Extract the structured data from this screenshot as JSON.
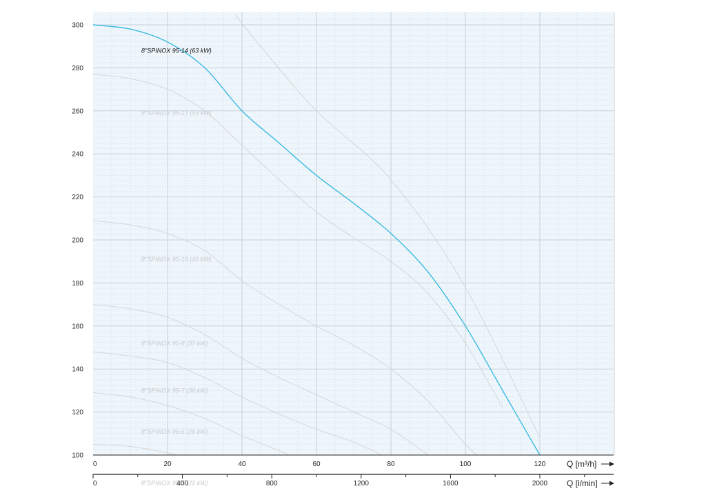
{
  "chart_data": {
    "type": "line",
    "x_axis": {
      "label": "Q [m³/h]",
      "range": [
        0,
        140
      ],
      "ticks": [
        "0",
        "20",
        "40",
        "60",
        "80",
        "100",
        "120"
      ]
    },
    "x2_axis": {
      "label": "Q [l/min]",
      "ticks": [
        "0",
        "400",
        "800",
        "1200",
        "1600",
        "2000"
      ]
    },
    "y_axis": {
      "range": [
        100,
        305
      ],
      "ticks": [
        "100",
        "120",
        "140",
        "160",
        "180",
        "200",
        "220",
        "240",
        "260",
        "280",
        "300"
      ]
    },
    "grid": true,
    "series": [
      {
        "name": "8\"SPINOX 95-14 (63 kW)",
        "highlighted": true,
        "color": "#3bbbe2",
        "points": [
          [
            0,
            300
          ],
          [
            10,
            298
          ],
          [
            20,
            292
          ],
          [
            30,
            280
          ],
          [
            40,
            260
          ],
          [
            50,
            245
          ],
          [
            60,
            230
          ],
          [
            70,
            217
          ],
          [
            80,
            203
          ],
          [
            90,
            185
          ],
          [
            100,
            160
          ],
          [
            110,
            130
          ],
          [
            120,
            100
          ]
        ]
      },
      {
        "name": "8\"SPINOX 95-13 (55 kW)",
        "highlighted": false,
        "color": "#d6d6d6",
        "points": [
          [
            0,
            277
          ],
          [
            10,
            275
          ],
          [
            20,
            270
          ],
          [
            30,
            260
          ],
          [
            40,
            244
          ],
          [
            50,
            228
          ],
          [
            60,
            213
          ],
          [
            70,
            201
          ],
          [
            80,
            190
          ],
          [
            90,
            175
          ],
          [
            100,
            152
          ],
          [
            110,
            122
          ]
        ]
      },
      {
        "name": "",
        "highlighted": false,
        "color": "#d6d6d6",
        "points": [
          [
            38,
            305
          ],
          [
            45,
            290
          ],
          [
            60,
            260
          ],
          [
            80,
            228
          ],
          [
            100,
            178
          ],
          [
            120,
            108
          ]
        ]
      },
      {
        "name": "8\"SPINOX 95-10 (45 kW)",
        "highlighted": false,
        "color": "#d6d6d6",
        "points": [
          [
            0,
            209
          ],
          [
            10,
            207
          ],
          [
            20,
            203
          ],
          [
            30,
            195
          ],
          [
            40,
            181
          ],
          [
            50,
            170
          ],
          [
            60,
            160
          ],
          [
            70,
            151
          ],
          [
            80,
            140
          ],
          [
            90,
            125
          ],
          [
            100,
            105
          ],
          [
            105,
            97
          ]
        ]
      },
      {
        "name": "8\"SPINOX 95-8 (37 kW)",
        "highlighted": false,
        "color": "#d6d6d6",
        "points": [
          [
            0,
            170
          ],
          [
            10,
            168
          ],
          [
            20,
            164
          ],
          [
            30,
            156
          ],
          [
            40,
            145
          ],
          [
            50,
            136
          ],
          [
            60,
            128
          ],
          [
            70,
            120
          ],
          [
            80,
            112
          ],
          [
            90,
            100
          ],
          [
            95,
            94
          ]
        ]
      },
      {
        "name": "8\"SPINOX 95-7 (30 kW)",
        "highlighted": false,
        "color": "#d6d6d6",
        "points": [
          [
            0,
            148
          ],
          [
            10,
            146
          ],
          [
            20,
            143
          ],
          [
            30,
            136
          ],
          [
            40,
            127
          ],
          [
            50,
            119
          ],
          [
            60,
            112
          ],
          [
            70,
            106
          ],
          [
            80,
            98
          ],
          [
            85,
            94
          ]
        ]
      },
      {
        "name": "8\"SPINOX 95-6 (26 kW)",
        "highlighted": false,
        "color": "#d6d6d6",
        "points": [
          [
            0,
            129
          ],
          [
            10,
            127
          ],
          [
            20,
            123
          ],
          [
            30,
            117
          ],
          [
            40,
            109
          ],
          [
            50,
            102
          ],
          [
            55,
            98
          ]
        ]
      },
      {
        "name": "8\"SPINOX 95-5 (22 kW)",
        "highlighted": false,
        "color": "#d6d6d6",
        "points": [
          [
            0,
            105
          ],
          [
            10,
            104
          ],
          [
            20,
            101
          ],
          [
            27,
            98
          ]
        ]
      }
    ]
  },
  "colors": {
    "plot_background": "#eef6fc",
    "major_grid": "#c7d0d8",
    "minor_grid": "#dbe7f1",
    "highlight": "#3bbbe2",
    "muted_curve": "#d6d6d6",
    "muted_label": "#c8c8c8"
  }
}
